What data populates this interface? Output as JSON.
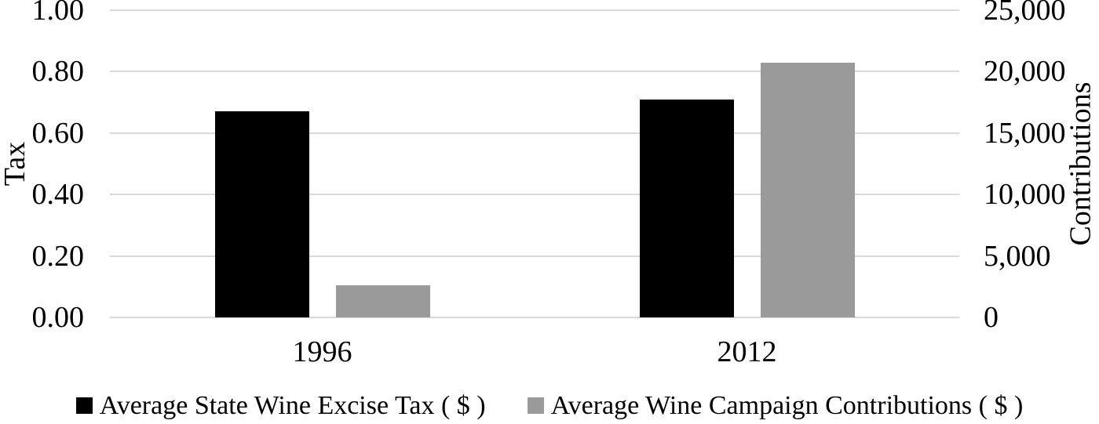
{
  "chart_data": {
    "type": "bar",
    "categories": [
      "1996",
      "2012"
    ],
    "series": [
      {
        "key": "excise-tax",
        "name": "Average State Wine Excise Tax ( $ )",
        "axis": "left",
        "color": "#000000",
        "values": [
          0.67,
          0.71
        ]
      },
      {
        "key": "campaign-contributions",
        "name": "Average Wine Campaign Contributions ( $ )",
        "axis": "right",
        "color": "#9a9a9a",
        "values": [
          2600,
          20700
        ]
      }
    ],
    "left_axis": {
      "label": "Tax",
      "min": 0,
      "max": 1.0,
      "ticks": [
        "1.00",
        "0.80",
        "0.60",
        "0.40",
        "0.20",
        "0.00"
      ]
    },
    "right_axis": {
      "label": "Contributions",
      "min": 0,
      "max": 25000,
      "ticks": [
        "25,000",
        "20,000",
        "15,000",
        "10,000",
        "5,000",
        "0"
      ]
    },
    "grid": true,
    "gridline_color": "#d9d9d9",
    "background": "#ffffff",
    "legend_position": "bottom"
  }
}
